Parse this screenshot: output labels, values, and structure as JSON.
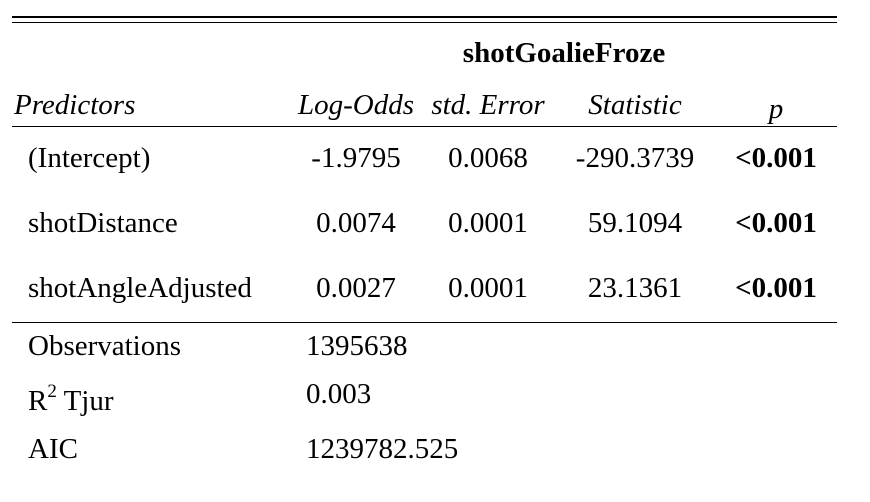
{
  "table": {
    "dependent_variable": "shotGoalieFroze",
    "headers": {
      "predictors": "Predictors",
      "estimate": "Log-Odds",
      "std_error": "std. Error",
      "statistic": "Statistic",
      "p": "p"
    },
    "rows": [
      {
        "predictor": "(Intercept)",
        "estimate": "-1.9795",
        "std_error": "0.0068",
        "statistic": "-290.3739",
        "p": "<0.001"
      },
      {
        "predictor": "shotDistance",
        "estimate": "0.0074",
        "std_error": "0.0001",
        "statistic": "59.1094",
        "p": "<0.001"
      },
      {
        "predictor": "shotAngleAdjusted",
        "estimate": "0.0027",
        "std_error": "0.0001",
        "statistic": "23.1361",
        "p": "<0.001"
      }
    ],
    "stats": {
      "observations_label": "Observations",
      "observations_value": "1395638",
      "r2_label_base": "R",
      "r2_label_sup": "2",
      "r2_label_suffix": " Tjur",
      "r2_value": "0.003",
      "aic_label": "AIC",
      "aic_value": "1239782.525"
    }
  }
}
